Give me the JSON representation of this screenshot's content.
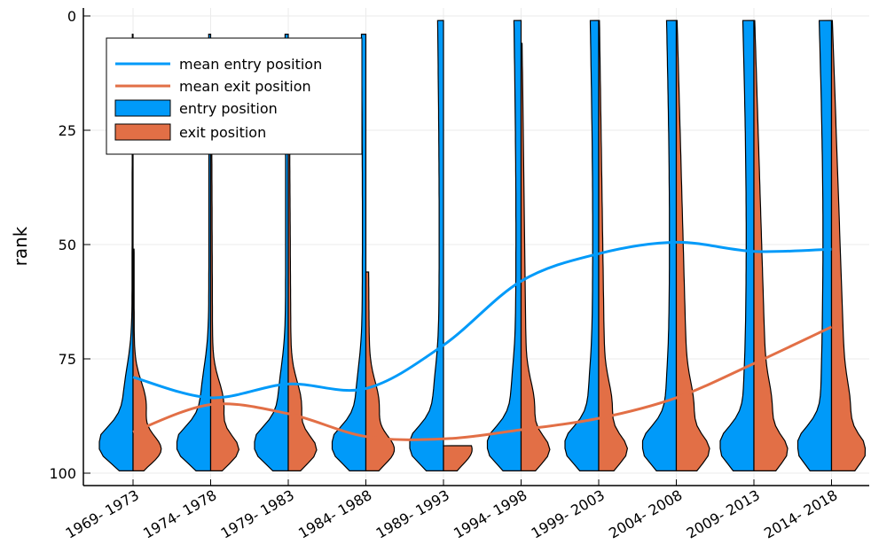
{
  "chart_data": {
    "type": "violin",
    "ylabel": "rank",
    "y_axis_reversed": true,
    "ylim": [
      0,
      100
    ],
    "yticks": [
      0,
      25,
      50,
      75,
      100
    ],
    "grid": true,
    "legend_position": "top-left",
    "categories": [
      "1969- 1973",
      "1974- 1978",
      "1979- 1983",
      "1984- 1988",
      "1989- 1993",
      "1994- 1998",
      "1999- 2003",
      "2004- 2008",
      "2009- 2013",
      "2014- 2018"
    ],
    "legend": [
      "mean entry position",
      "mean exit position",
      "entry position",
      "exit position"
    ],
    "colors": {
      "entry": "#009af9",
      "exit": "#e26f46"
    },
    "series": [
      {
        "name": "mean entry position",
        "values": [
          79,
          83.5,
          80.5,
          81.5,
          72,
          58,
          52,
          49.5,
          51.5,
          51
        ]
      },
      {
        "name": "mean exit position",
        "values": [
          91,
          85,
          87,
          92,
          92.5,
          90.5,
          88,
          83.5,
          76,
          68
        ]
      }
    ],
    "violins": {
      "entry_top_rank": [
        4,
        4,
        4,
        4,
        1,
        1,
        1,
        1,
        1,
        1
      ],
      "exit_top_rank": [
        51,
        6,
        8,
        56,
        94,
        6,
        1,
        1,
        1,
        1
      ]
    }
  }
}
